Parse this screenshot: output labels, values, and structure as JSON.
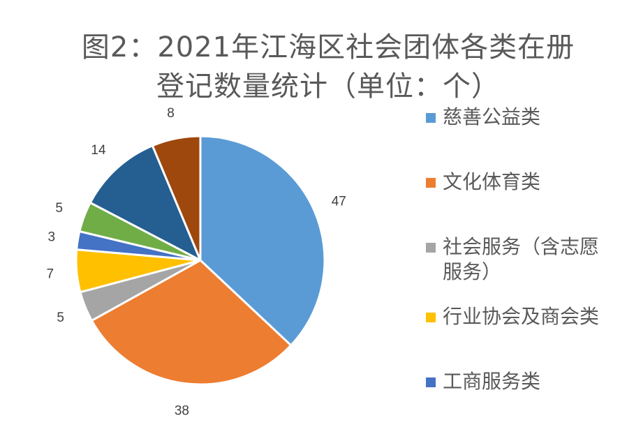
{
  "chart_data": {
    "type": "pie",
    "title": "图2：2021年江海区社会团体各类在册登记数量统计（单位：个）",
    "title_lines": [
      "图2：2021年江海区社会团体各类在册",
      "登记数量统计（单位：个）"
    ],
    "slices": [
      {
        "label": "慈善公益类",
        "value": 47,
        "color": "#5B9BD5"
      },
      {
        "label": "文化体育类",
        "value": 38,
        "color": "#ED7D31"
      },
      {
        "label": "社会服务（含志愿服务）",
        "value": 5,
        "color": "#A5A5A5"
      },
      {
        "label": "行业协会及商会类",
        "value": 7,
        "color": "#FFC000"
      },
      {
        "label": "工商服务类",
        "value": 3,
        "color": "#4472C4"
      },
      {
        "label": "",
        "value": 5,
        "color": "#70AD47"
      },
      {
        "label": "",
        "value": 14,
        "color": "#255E91"
      },
      {
        "label": "",
        "value": 8,
        "color": "#9E480E"
      }
    ],
    "legend": {
      "position": "right",
      "items": [
        {
          "lines": [
            "慈善公益类"
          ],
          "color": "#5B9BD5"
        },
        {
          "lines": [
            "文化体育类"
          ],
          "color": "#ED7D31"
        },
        {
          "lines": [
            "社会服务（含志愿",
            "服务）"
          ],
          "color": "#A5A5A5"
        },
        {
          "lines": [
            "行业协会及商会类"
          ],
          "color": "#FFC000"
        },
        {
          "lines": [
            "工商服务类"
          ],
          "color": "#4472C4"
        }
      ]
    }
  }
}
